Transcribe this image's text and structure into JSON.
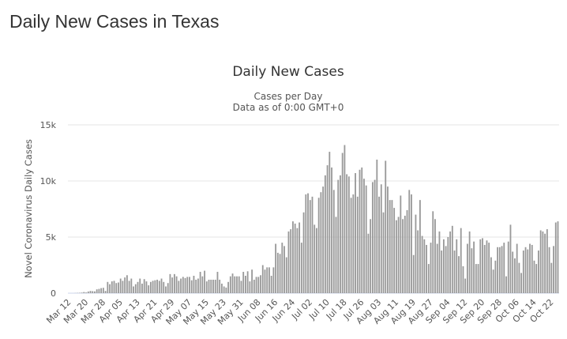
{
  "page": {
    "title": "Daily New Cases in Texas"
  },
  "chart_data": {
    "type": "bar",
    "title": "Daily New Cases",
    "subtitle": "Cases per Day",
    "subtitle2": "Data as of 0:00 GMT+0",
    "xlabel": "",
    "ylabel": "Novel Coronavirus Daily Cases",
    "ylim": [
      0,
      15000
    ],
    "yticks": [
      0,
      5000,
      10000,
      15000
    ],
    "ytick_labels": [
      "0",
      "5k",
      "10k",
      "15k"
    ],
    "grid": true,
    "x_start": "Mar 12",
    "xtick_labels": [
      "Mar 12",
      "Mar 20",
      "Mar 28",
      "Apr 05",
      "Apr 13",
      "Apr 21",
      "Apr 29",
      "May 07",
      "May 15",
      "May 23",
      "May 31",
      "Jun 08",
      "Jun 16",
      "Jun 24",
      "Jul 02",
      "Jul 10",
      "Jul 18",
      "Jul 26",
      "Aug 03",
      "Aug 11",
      "Aug 19",
      "Aug 27",
      "Sep 04",
      "Sep 12",
      "Sep 20",
      "Sep 28",
      "Oct 06",
      "Oct 14",
      "Oct 22"
    ],
    "bar_color": "#999999",
    "values": [
      0,
      0,
      0,
      10,
      20,
      30,
      50,
      100,
      60,
      150,
      200,
      180,
      160,
      340,
      380,
      450,
      480,
      200,
      1000,
      800,
      1050,
      1100,
      900,
      950,
      1300,
      1100,
      1400,
      1600,
      1100,
      1300,
      600,
      800,
      1000,
      1300,
      850,
      1250,
      1050,
      700,
      1000,
      1100,
      1150,
      1200,
      1100,
      1300,
      1000,
      600,
      900,
      1700,
      1400,
      1700,
      1500,
      1100,
      1300,
      1450,
      1350,
      1450,
      1450,
      1150,
      1550,
      1200,
      1300,
      1900,
      1500,
      2000,
      1050,
      1200,
      1200,
      1200,
      1200,
      1900,
      1200,
      850,
      600,
      500,
      1000,
      1500,
      1750,
      1500,
      1500,
      1500,
      1100,
      1900,
      1550,
      1950,
      1050,
      2100,
      1200,
      1450,
      1450,
      1600,
      2500,
      2100,
      2300,
      2300,
      1550,
      2300,
      4400,
      3600,
      3500,
      4500,
      4200,
      3200,
      5500,
      5700,
      6400,
      6200,
      5800,
      6300,
      4500,
      7200,
      8800,
      8900,
      8300,
      8600,
      6100,
      5800,
      8500,
      9000,
      9500,
      10500,
      11400,
      12600,
      11200,
      9200,
      6800,
      10100,
      10500,
      12500,
      13200,
      10600,
      10400,
      8500,
      8800,
      10700,
      8600,
      11000,
      11200,
      10200,
      9600,
      5300,
      6600,
      9900,
      10100,
      11900,
      8600,
      9700,
      7200,
      11800,
      9500,
      8300,
      8300,
      7600,
      6500,
      6800,
      8700,
      6600,
      6900,
      7400,
      9200,
      8800,
      3400,
      7000,
      5600,
      8300,
      5100,
      4800,
      4300,
      2600,
      4500,
      7300,
      6600,
      4400,
      5500,
      3800,
      4800,
      4200,
      5000,
      5500,
      6000,
      3800,
      4800,
      3300,
      5800,
      2400,
      1300,
      4400,
      5500,
      4000,
      4600,
      2600,
      2600,
      4800,
      4900,
      4300,
      4700,
      4500,
      3200,
      2100,
      2900,
      4100,
      4100,
      4200,
      4500,
      1500,
      4600,
      6100,
      3700,
      3100,
      4400,
      2700,
      1800,
      3800,
      4100,
      3900,
      4400,
      4300,
      2900,
      2600,
      3800,
      5600,
      5500,
      5300,
      5700,
      4100,
      2700,
      4200,
      6300,
      6400
    ]
  }
}
